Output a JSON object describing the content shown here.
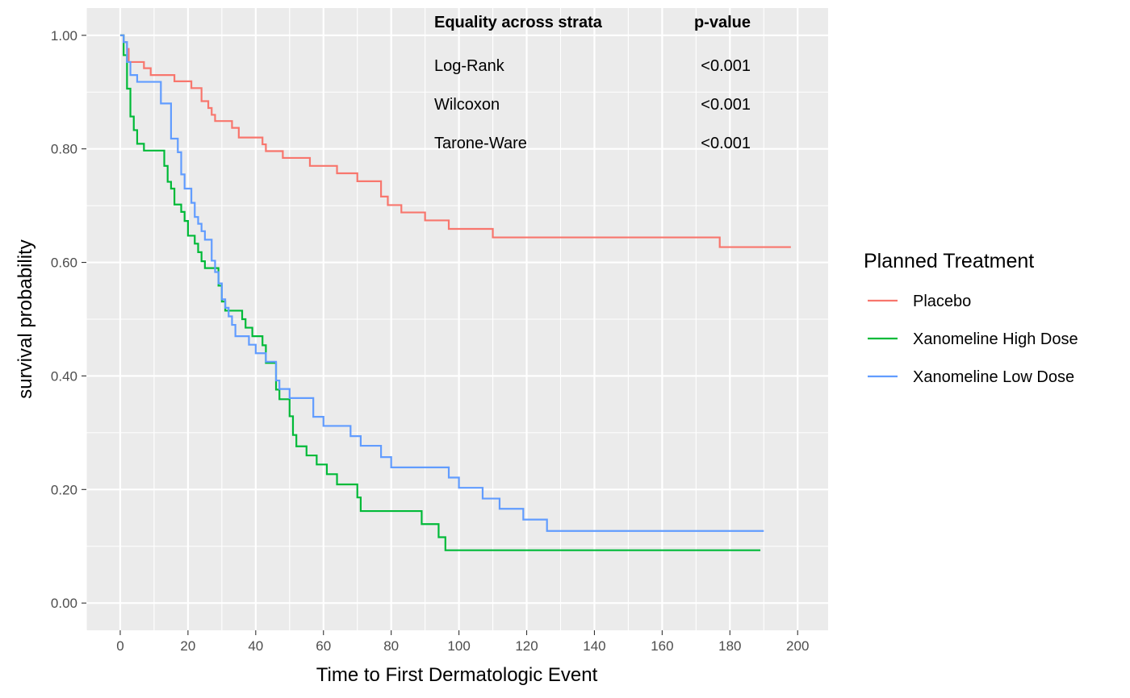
{
  "chart_data": {
    "type": "line",
    "step": true,
    "xlabel": "Time to First Dermatologic Event",
    "ylabel": "survival probability",
    "xlim": [
      -10,
      209
    ],
    "ylim": [
      -0.048,
      1.048
    ],
    "x_ticks": [
      0,
      20,
      40,
      60,
      80,
      100,
      120,
      140,
      160,
      180,
      200
    ],
    "x_tick_labels": [
      "0",
      "20",
      "40",
      "60",
      "80",
      "100",
      "120",
      "140",
      "160",
      "180",
      "200"
    ],
    "y_ticks": [
      0,
      0.2,
      0.4,
      0.6,
      0.8,
      1.0
    ],
    "y_tick_labels": [
      "0.00",
      "0.20",
      "0.40",
      "0.60",
      "0.80",
      "1.00"
    ],
    "grid": true,
    "legend": {
      "title": "Planned Treatment",
      "placement": "right"
    },
    "series": [
      {
        "name": "Placebo",
        "color": "#F8766D",
        "points": [
          [
            0,
            1.0
          ],
          [
            1,
            0.988
          ],
          [
            2,
            0.976
          ],
          [
            2.5,
            0.953
          ],
          [
            7,
            0.942
          ],
          [
            9,
            0.93
          ],
          [
            16,
            0.919
          ],
          [
            21,
            0.907
          ],
          [
            24,
            0.884
          ],
          [
            26,
            0.872
          ],
          [
            27,
            0.86
          ],
          [
            28,
            0.849
          ],
          [
            33,
            0.837
          ],
          [
            35,
            0.82
          ],
          [
            42,
            0.808
          ],
          [
            43,
            0.796
          ],
          [
            48,
            0.784
          ],
          [
            56,
            0.77
          ],
          [
            64,
            0.757
          ],
          [
            70,
            0.743
          ],
          [
            77,
            0.716
          ],
          [
            79,
            0.701
          ],
          [
            83,
            0.688
          ],
          [
            90,
            0.674
          ],
          [
            97,
            0.659
          ],
          [
            110,
            0.644
          ],
          [
            177,
            0.627
          ],
          [
            198,
            0.627
          ]
        ]
      },
      {
        "name": "Xanomeline High Dose",
        "color": "#00BA38",
        "points": [
          [
            0,
            1.0
          ],
          [
            1,
            0.965
          ],
          [
            2,
            0.906
          ],
          [
            3,
            0.857
          ],
          [
            4,
            0.833
          ],
          [
            5,
            0.809
          ],
          [
            7,
            0.797
          ],
          [
            13,
            0.77
          ],
          [
            14,
            0.742
          ],
          [
            15,
            0.73
          ],
          [
            16,
            0.702
          ],
          [
            18,
            0.689
          ],
          [
            19,
            0.673
          ],
          [
            20,
            0.647
          ],
          [
            22,
            0.633
          ],
          [
            23,
            0.618
          ],
          [
            24,
            0.602
          ],
          [
            25,
            0.59
          ],
          [
            29,
            0.559
          ],
          [
            30,
            0.531
          ],
          [
            31,
            0.515
          ],
          [
            36,
            0.5
          ],
          [
            37,
            0.485
          ],
          [
            39,
            0.47
          ],
          [
            42,
            0.454
          ],
          [
            43,
            0.423
          ],
          [
            46,
            0.376
          ],
          [
            47,
            0.359
          ],
          [
            50,
            0.329
          ],
          [
            51,
            0.296
          ],
          [
            52,
            0.276
          ],
          [
            55,
            0.26
          ],
          [
            58,
            0.244
          ],
          [
            61,
            0.227
          ],
          [
            64,
            0.209
          ],
          [
            70,
            0.186
          ],
          [
            71,
            0.162
          ],
          [
            89,
            0.139
          ],
          [
            94,
            0.116
          ],
          [
            96,
            0.093
          ],
          [
            189,
            0.093
          ]
        ]
      },
      {
        "name": "Xanomeline Low Dose",
        "color": "#619CFF",
        "points": [
          [
            0,
            1.0
          ],
          [
            1,
            0.988
          ],
          [
            2,
            0.953
          ],
          [
            3,
            0.93
          ],
          [
            5,
            0.918
          ],
          [
            12,
            0.88
          ],
          [
            15,
            0.818
          ],
          [
            17,
            0.794
          ],
          [
            18,
            0.755
          ],
          [
            19,
            0.73
          ],
          [
            21,
            0.705
          ],
          [
            22,
            0.68
          ],
          [
            23,
            0.668
          ],
          [
            24,
            0.655
          ],
          [
            25,
            0.64
          ],
          [
            27,
            0.603
          ],
          [
            28,
            0.583
          ],
          [
            29,
            0.563
          ],
          [
            30,
            0.535
          ],
          [
            31,
            0.52
          ],
          [
            32,
            0.505
          ],
          [
            33,
            0.49
          ],
          [
            34,
            0.47
          ],
          [
            38,
            0.455
          ],
          [
            40,
            0.44
          ],
          [
            43,
            0.425
          ],
          [
            46,
            0.392
          ],
          [
            47,
            0.377
          ],
          [
            50,
            0.361
          ],
          [
            57,
            0.328
          ],
          [
            60,
            0.312
          ],
          [
            68,
            0.294
          ],
          [
            71,
            0.277
          ],
          [
            77,
            0.257
          ],
          [
            80,
            0.239
          ],
          [
            97,
            0.221
          ],
          [
            100,
            0.203
          ],
          [
            107,
            0.184
          ],
          [
            112,
            0.166
          ],
          [
            119,
            0.147
          ],
          [
            126,
            0.127
          ],
          [
            190,
            0.127
          ]
        ]
      }
    ],
    "annotation_table": {
      "headers": [
        "Equality across strata",
        "p-value"
      ],
      "rows": [
        [
          "Log-Rank",
          "<0.001"
        ],
        [
          "Wilcoxon",
          "<0.001"
        ],
        [
          "Tarone-Ware",
          "<0.001"
        ]
      ]
    }
  }
}
